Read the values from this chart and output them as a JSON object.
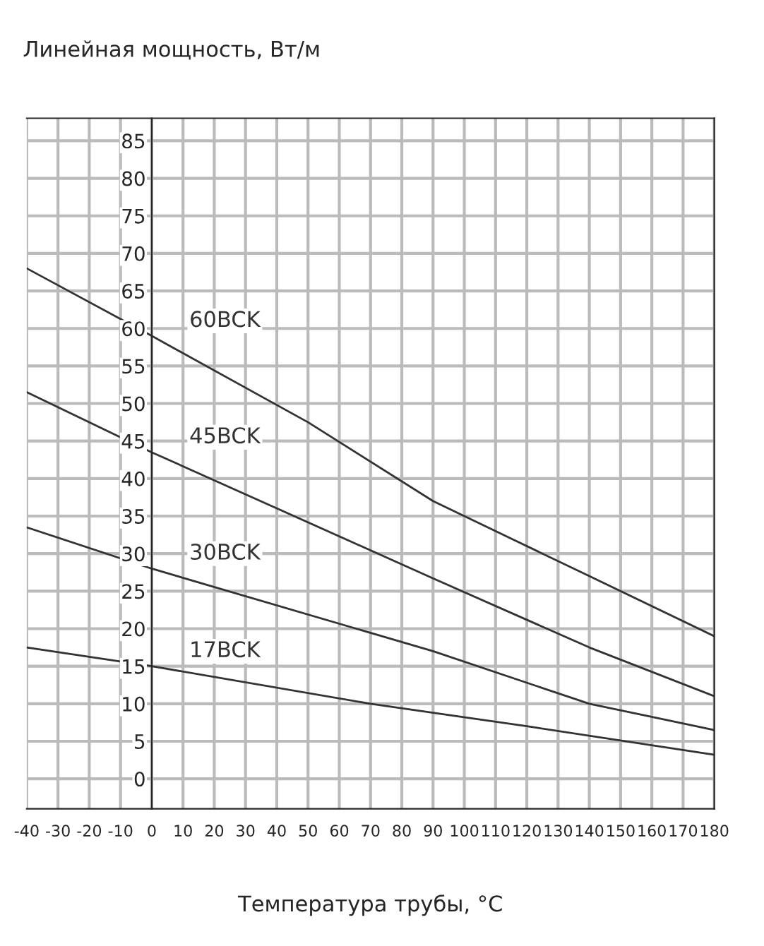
{
  "chart_data": {
    "type": "line",
    "title": "Линейная мощность, Вт/м",
    "xlabel": "Температура трубы, °C",
    "series": [
      {
        "name": "60BCK",
        "color": "#333333",
        "x": [
          -40,
          0,
          50,
          90,
          140,
          180
        ],
        "values": [
          68,
          59,
          47.5,
          37,
          27,
          19
        ]
      },
      {
        "name": "45BCK",
        "color": "#333333",
        "x": [
          -40,
          0,
          90,
          140,
          180
        ],
        "values": [
          51.5,
          43.5,
          26.7,
          17.5,
          11
        ]
      },
      {
        "name": "30BCK",
        "color": "#333333",
        "x": [
          -40,
          0,
          90,
          140,
          180
        ],
        "values": [
          33.5,
          28,
          17,
          10,
          6.5
        ]
      },
      {
        "name": "17BCK",
        "color": "#333333",
        "x": [
          -40,
          0,
          70,
          120,
          180
        ],
        "values": [
          17.5,
          15,
          10,
          7,
          3.2
        ]
      }
    ],
    "xlim": [
      -40,
      180
    ],
    "xticks": [
      -40,
      -30,
      -20,
      -10,
      0,
      10,
      20,
      30,
      40,
      50,
      60,
      70,
      80,
      90,
      100,
      110,
      120,
      130,
      140,
      150,
      160,
      170,
      180
    ],
    "ylim": [
      -4,
      88
    ],
    "yticks": [
      0,
      5,
      10,
      15,
      20,
      25,
      30,
      35,
      40,
      45,
      50,
      55,
      60,
      65,
      70,
      75,
      80,
      85
    ],
    "grid": true,
    "marker": "none",
    "line_style": "solid",
    "legend": false
  }
}
